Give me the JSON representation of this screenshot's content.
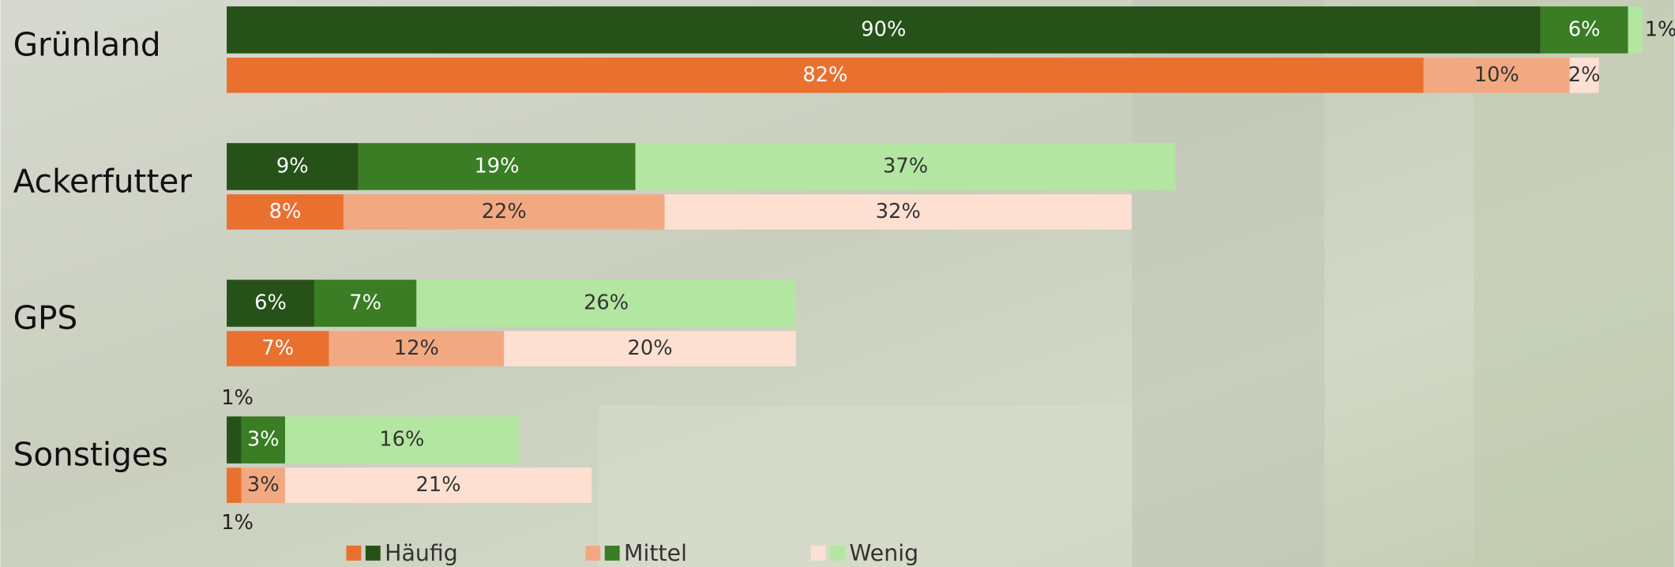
{
  "chart_data": {
    "type": "grouped-stacked-bar",
    "categories": [
      "Grünland",
      "Ackerfutter",
      "GPS",
      "Sonstiges"
    ],
    "xlim": [
      0,
      100
    ],
    "series": [
      {
        "name": "Häufig",
        "color": "#265219",
        "values": [
          90,
          9,
          6,
          1
        ],
        "value_labels": [
          "90%",
          "9%",
          "6%",
          "1%"
        ],
        "alt_color": "#ea7030",
        "alt_values": [
          82,
          8,
          7,
          1
        ],
        "alt_value_labels": [
          "82%",
          "8%",
          "7%",
          "1%"
        ]
      },
      {
        "name": "Mittel",
        "color": "#3a7d24",
        "values": [
          6,
          19,
          7,
          3
        ],
        "value_labels": [
          "6%",
          "19%",
          "7%",
          "3%"
        ],
        "alt_color": "#f2a982",
        "alt_values": [
          10,
          22,
          12,
          3
        ],
        "alt_value_labels": [
          "10%",
          "22%",
          "12%",
          "3%"
        ]
      },
      {
        "name": "Wenig",
        "color": "#b3e6a1",
        "values": [
          1,
          37,
          26,
          16
        ],
        "value_labels": [
          "1%",
          "37%",
          "26%",
          "16%"
        ],
        "alt_color": "#fde0d2",
        "alt_values": [
          2,
          32,
          20,
          21
        ],
        "alt_value_labels": [
          "2%",
          "32%",
          "20%",
          "21%"
        ]
      }
    ]
  }
}
